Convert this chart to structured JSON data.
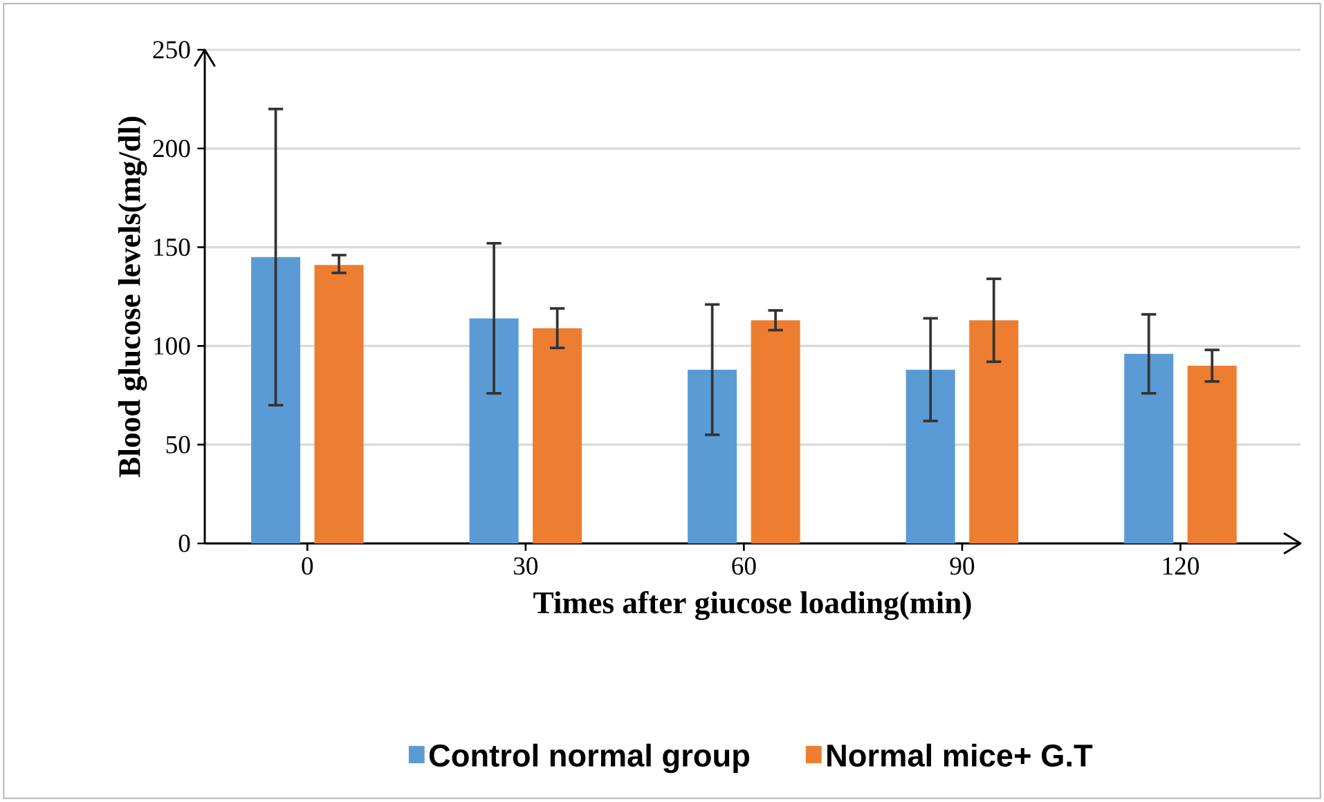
{
  "chart_data": {
    "type": "bar",
    "xlabel": "Times after giucose loading(min)",
    "ylabel": "Blood glucose levels(mg/dl)",
    "categories": [
      "0",
      "30",
      "60",
      "90",
      "120"
    ],
    "series": [
      {
        "name": "Control normal group",
        "color": "#5b9bd5",
        "values": [
          145,
          114,
          88,
          88,
          96
        ],
        "errors": [
          75,
          38,
          33,
          26,
          20
        ]
      },
      {
        "name": "Normal mice+ G.T",
        "color": "#ed7d31",
        "values": [
          141,
          109,
          113,
          113,
          90
        ],
        "errors": [
          [
            137,
            146
          ],
          10,
          5,
          21,
          8
        ]
      }
    ],
    "ylim": [
      0,
      250
    ],
    "yticks": [
      0,
      50,
      100,
      150,
      200,
      250
    ],
    "grid": "y",
    "legend": "bottom"
  }
}
